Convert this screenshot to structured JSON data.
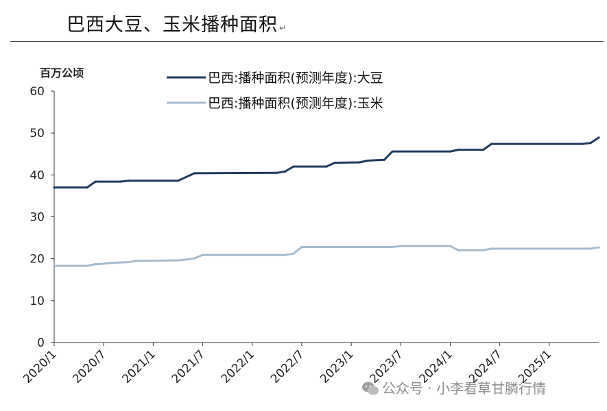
{
  "header": {
    "title": "巴西大豆、玉米播种面积",
    "title_mark": "↵"
  },
  "watermark": {
    "text": "公众号 · 小李看草甘膦行情",
    "icon": "wechat-icon"
  },
  "colors": {
    "soy": "#1f3a5c",
    "corn": "#a7bccd",
    "axis": "#333333",
    "rule": "#444444"
  },
  "chart_data": {
    "type": "line",
    "title": "",
    "ylabel": "百万公顷",
    "xlabel": "",
    "ylim": [
      0,
      60
    ],
    "yticks": [
      0,
      10,
      20,
      30,
      40,
      50,
      60
    ],
    "grid": false,
    "legend_position": "top",
    "x_ticks": [
      "2020/1",
      "2020/7",
      "2021/1",
      "2021/7",
      "2022/1",
      "2022/7",
      "2023/1",
      "2023/7",
      "2024/1",
      "2024/7",
      "2025/1"
    ],
    "x_range": [
      "2020/1",
      "2025/7"
    ],
    "series": [
      {
        "name": "巴西:播种面积(预测年度):大豆",
        "color": "#1f3a5c",
        "points": [
          [
            "2020/1",
            37.0
          ],
          [
            "2020/5",
            37.0
          ],
          [
            "2020/6",
            38.4
          ],
          [
            "2020/9",
            38.4
          ],
          [
            "2020/10",
            38.6
          ],
          [
            "2021/4",
            38.6
          ],
          [
            "2021/6",
            40.4
          ],
          [
            "2022/4",
            40.5
          ],
          [
            "2022/5",
            40.8
          ],
          [
            "2022/6",
            42.0
          ],
          [
            "2022/10",
            42.0
          ],
          [
            "2022/11",
            42.9
          ],
          [
            "2023/2",
            43.0
          ],
          [
            "2023/3",
            43.4
          ],
          [
            "2023/5",
            43.6
          ],
          [
            "2023/6",
            45.6
          ],
          [
            "2024/1",
            45.6
          ],
          [
            "2024/2",
            46.0
          ],
          [
            "2024/5",
            46.0
          ],
          [
            "2024/6",
            47.4
          ],
          [
            "2025/5",
            47.4
          ],
          [
            "2025/6",
            47.6
          ],
          [
            "2025/7",
            48.9
          ]
        ]
      },
      {
        "name": "巴西:播种面积(预测年度):玉米",
        "color": "#a7bccd",
        "points": [
          [
            "2020/1",
            18.3
          ],
          [
            "2020/5",
            18.3
          ],
          [
            "2020/6",
            18.7
          ],
          [
            "2020/7",
            18.8
          ],
          [
            "2020/8",
            19.0
          ],
          [
            "2020/10",
            19.2
          ],
          [
            "2020/11",
            19.5
          ],
          [
            "2021/4",
            19.6
          ],
          [
            "2021/5",
            19.8
          ],
          [
            "2021/6",
            20.1
          ],
          [
            "2021/7",
            20.9
          ],
          [
            "2022/5",
            20.9
          ],
          [
            "2022/6",
            21.2
          ],
          [
            "2022/7",
            22.8
          ],
          [
            "2023/6",
            22.8
          ],
          [
            "2023/7",
            23.0
          ],
          [
            "2024/1",
            23.0
          ],
          [
            "2024/2",
            22.0
          ],
          [
            "2024/5",
            22.0
          ],
          [
            "2024/6",
            22.4
          ],
          [
            "2025/6",
            22.4
          ],
          [
            "2025/7",
            22.7
          ]
        ]
      }
    ]
  }
}
